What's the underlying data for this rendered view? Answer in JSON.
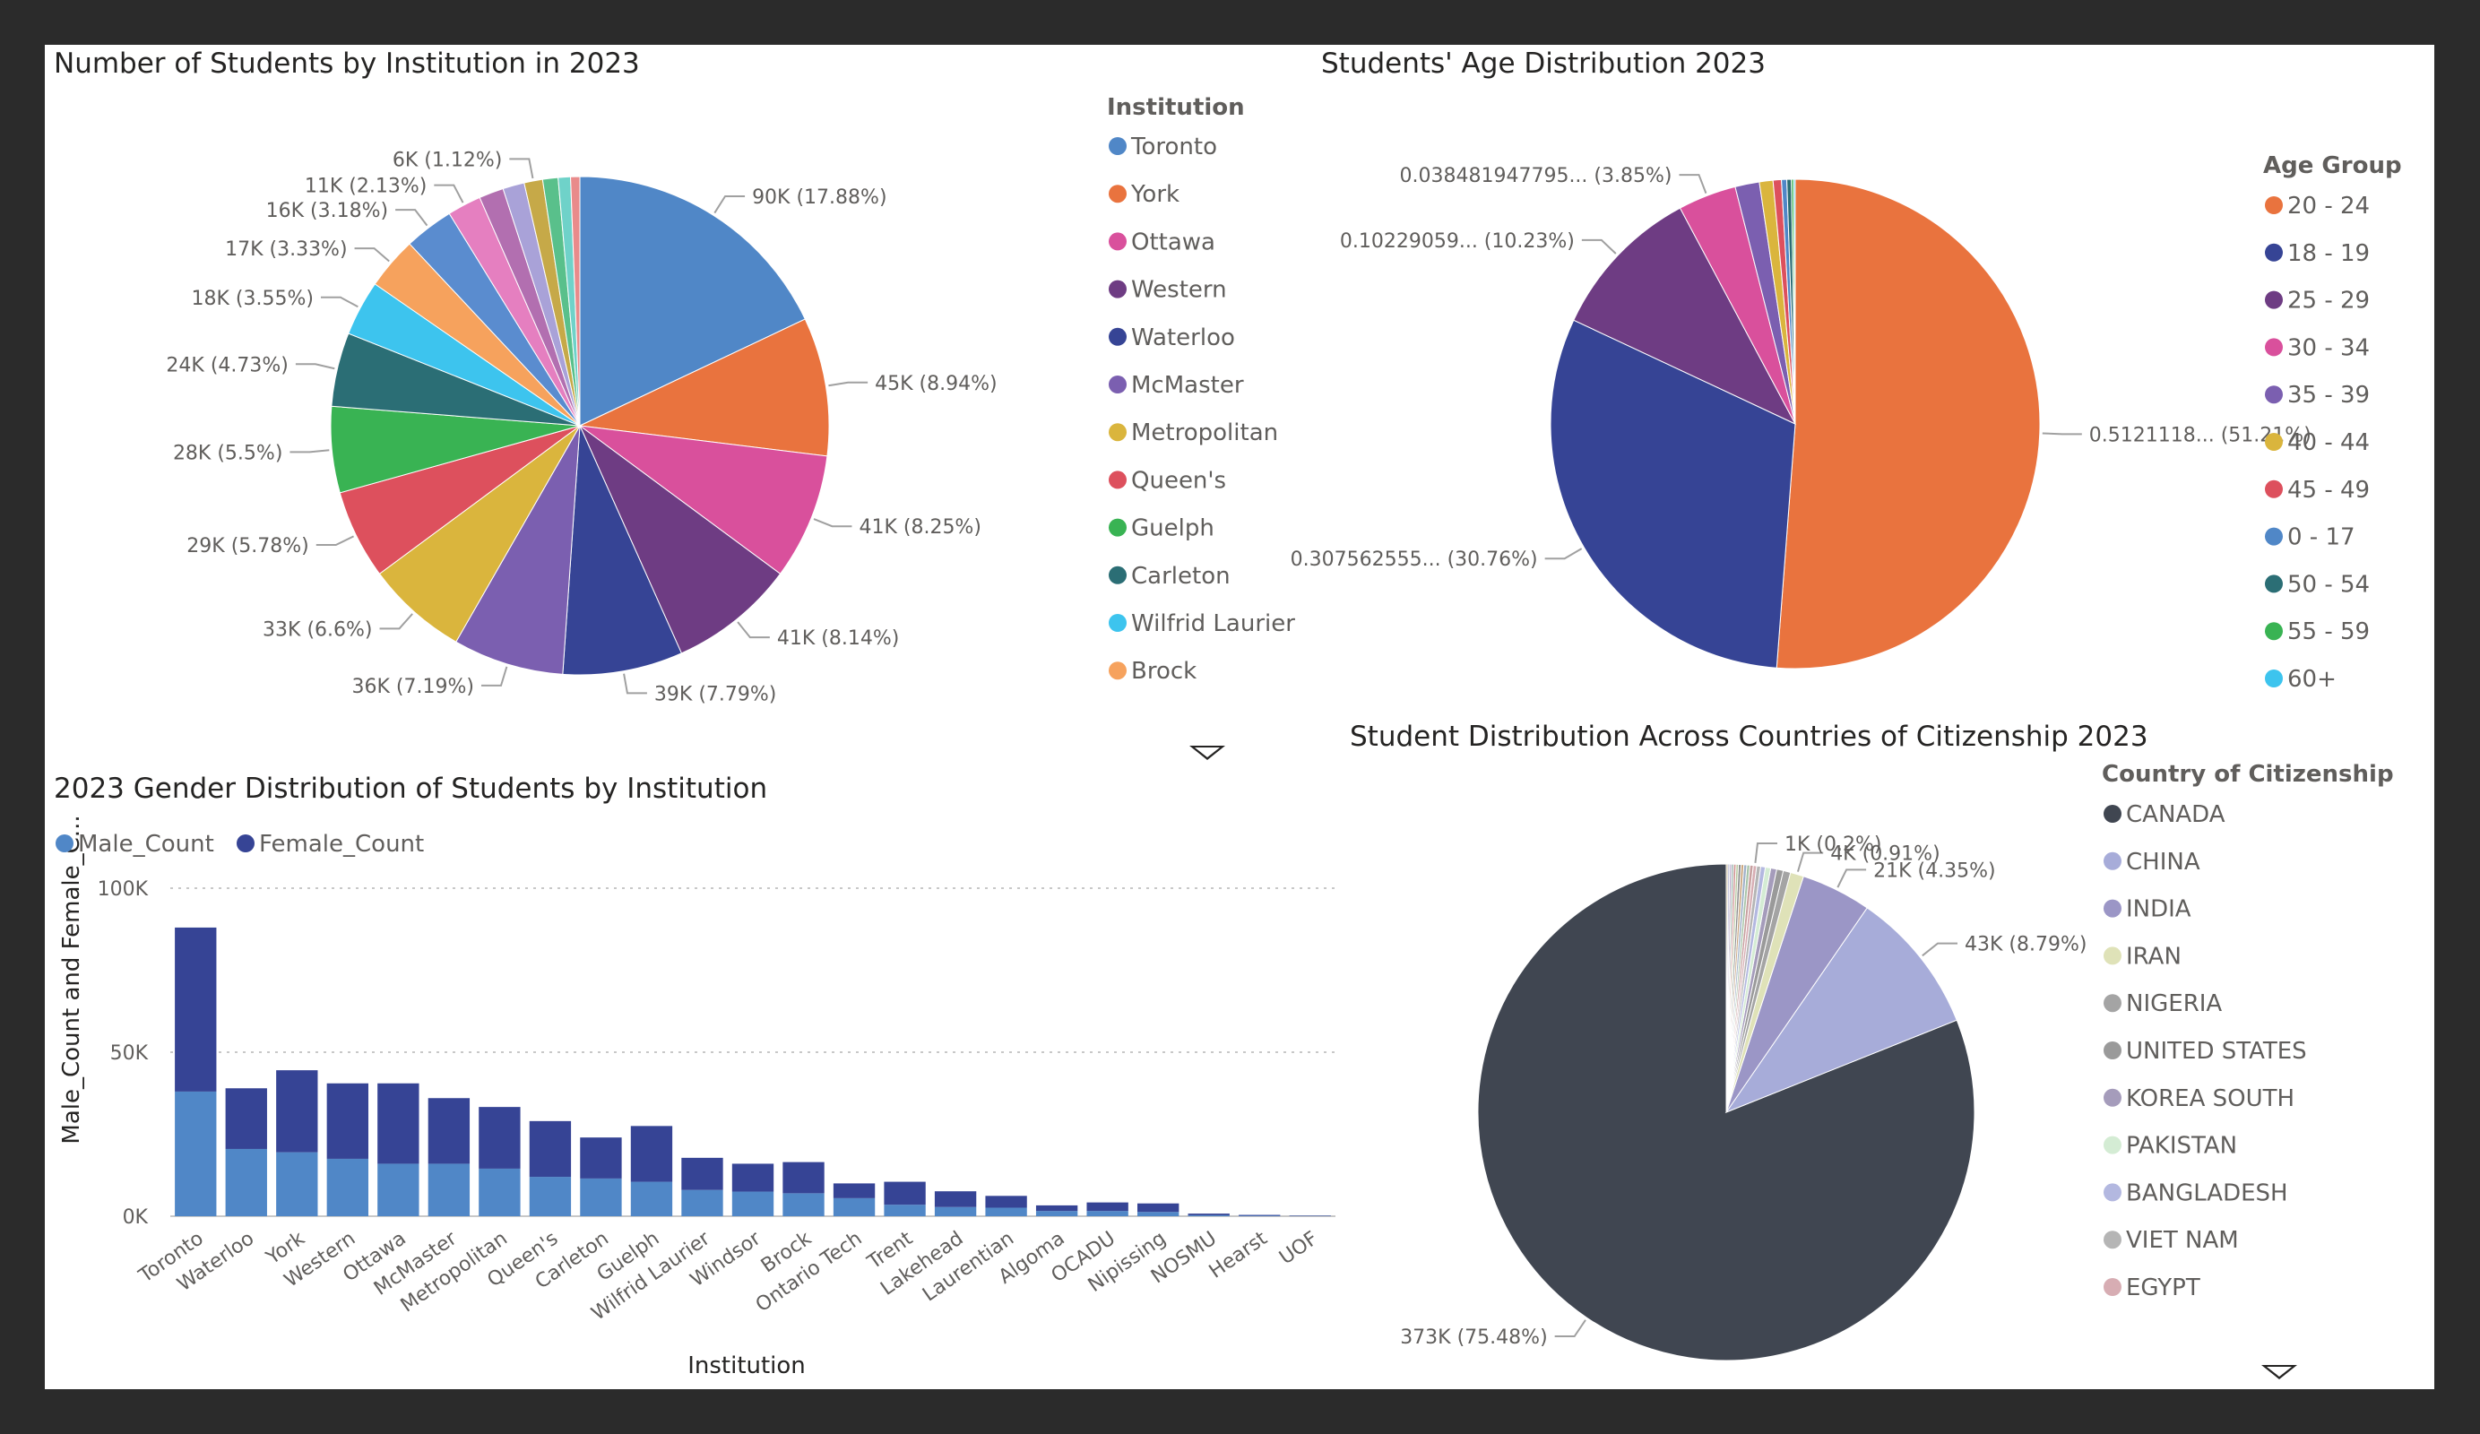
{
  "chart_data": [
    {
      "type": "pie",
      "title": "Number of Students by Institution in 2023",
      "legend_title": "Institution",
      "legend_position": "right",
      "slices": [
        {
          "name": "Toronto",
          "value": 90,
          "label": "90K (17.88%)",
          "color": "#5087c7"
        },
        {
          "name": "York",
          "value": 45,
          "label": "45K (8.94%)",
          "color": "#e9733e"
        },
        {
          "name": "Ottawa",
          "value": 41,
          "label": "41K (8.25%)",
          "color": "#d9509c"
        },
        {
          "name": "Western",
          "value": 41,
          "label": "41K (8.14%)",
          "color": "#6e3c83"
        },
        {
          "name": "Waterloo",
          "value": 39,
          "label": "39K (7.79%)",
          "color": "#364495"
        },
        {
          "name": "McMaster",
          "value": 36,
          "label": "36K (7.19%)",
          "color": "#7b5fb0"
        },
        {
          "name": "Metropolitan",
          "value": 33,
          "label": "33K (6.6%)",
          "color": "#dab53d"
        },
        {
          "name": "Queen's",
          "value": 29,
          "label": "29K (5.78%)",
          "color": "#dd505d"
        },
        {
          "name": "Guelph",
          "value": 28,
          "label": "28K (5.5%)",
          "color": "#39b353"
        },
        {
          "name": "Carleton",
          "value": 24,
          "label": "24K (4.73%)",
          "color": "#2b6e75"
        },
        {
          "name": "Wilfrid Laurier",
          "value": 18,
          "label": "18K (3.55%)",
          "color": "#3dc4ee"
        },
        {
          "name": "Brock",
          "value": 17,
          "label": "17K (3.33%)",
          "color": "#f6a25d"
        },
        {
          "name": "",
          "value": 16,
          "label": "16K (3.18%)",
          "color": "#5a8ccf"
        },
        {
          "name": "",
          "value": 11,
          "label": "11K (2.13%)",
          "color": "#e57fc0"
        },
        {
          "name": "",
          "value": 8,
          "label": "",
          "color": "#b26fb0"
        },
        {
          "name": "",
          "value": 7,
          "label": "",
          "color": "#a9a2d8"
        },
        {
          "name": "",
          "value": 6,
          "label": "6K (1.12%)",
          "color": "#c6a948"
        },
        {
          "name": "",
          "value": 5,
          "label": "",
          "color": "#59c08b"
        },
        {
          "name": "",
          "value": 4,
          "label": "",
          "color": "#6fd2c9"
        },
        {
          "name": "",
          "value": 3,
          "label": "",
          "color": "#e98b8b"
        }
      ]
    },
    {
      "type": "pie",
      "title": "Students' Age Distribution 2023",
      "legend_title": "Age Group",
      "legend_position": "right",
      "slices": [
        {
          "name": "20 - 24",
          "value": 51.21,
          "label": "0.5121118... (51.21%)",
          "color": "#e9733e"
        },
        {
          "name": "18 - 19",
          "value": 30.76,
          "label": "0.307562555... (30.76%)",
          "color": "#364495"
        },
        {
          "name": "25 - 29",
          "value": 10.23,
          "label": "0.10229059... (10.23%)",
          "color": "#6e3c83"
        },
        {
          "name": "30 - 34",
          "value": 3.85,
          "label": "0.038481947795... (3.85%)",
          "color": "#d9509c"
        },
        {
          "name": "35 - 39",
          "value": 1.6,
          "label": "",
          "color": "#7b5fb0"
        },
        {
          "name": "40 - 44",
          "value": 0.9,
          "label": "",
          "color": "#dab53d"
        },
        {
          "name": "45 - 49",
          "value": 0.55,
          "label": "",
          "color": "#dd505d"
        },
        {
          "name": "0 - 17",
          "value": 0.35,
          "label": "",
          "color": "#5087c7"
        },
        {
          "name": "50 - 54",
          "value": 0.3,
          "label": "",
          "color": "#2b6e75"
        },
        {
          "name": "55 - 59",
          "value": 0.15,
          "label": "",
          "color": "#39b353"
        },
        {
          "name": "60+",
          "value": 0.1,
          "label": "",
          "color": "#3dc4ee"
        }
      ]
    },
    {
      "type": "bar",
      "stacked": true,
      "title": "2023 Gender Distribution of Students by Institution",
      "xlabel": "Institution",
      "ylabel": "Male_Count and Female_C...",
      "ylim": [
        0,
        100000
      ],
      "yticks": [
        "0K",
        "50K",
        "100K"
      ],
      "grid": true,
      "legend_position": "top-left",
      "categories": [
        "Toronto",
        "Waterloo",
        "York",
        "Western",
        "Ottawa",
        "McMaster",
        "Metropolitan",
        "Queen's",
        "Carleton",
        "Guelph",
        "Wilfrid Laurier",
        "Windsor",
        "Brock",
        "Ontario Tech",
        "Trent",
        "Lakehead",
        "Laurentian",
        "Algoma",
        "OCADU",
        "Nipissing",
        "NOSMU",
        "Hearst",
        "UOF"
      ],
      "series": [
        {
          "name": "Male_Count",
          "color": "#5087c7",
          "values": [
            38000,
            20500,
            19500,
            17500,
            16000,
            16000,
            14500,
            12000,
            11500,
            10500,
            8000,
            7500,
            7000,
            5500,
            3500,
            2800,
            2600,
            1600,
            1600,
            1300,
            300,
            150,
            80
          ]
        },
        {
          "name": "Female_Count",
          "color": "#364495",
          "values": [
            50000,
            18500,
            25000,
            23000,
            24500,
            20000,
            18800,
            17000,
            12500,
            17000,
            9800,
            8500,
            9500,
            4500,
            7000,
            4800,
            3600,
            1700,
            2600,
            2600,
            500,
            250,
            120
          ]
        }
      ]
    },
    {
      "type": "pie",
      "title": "Student Distribution Across Countries of Citizenship 2023",
      "legend_title": "Country of Citizenship",
      "legend_position": "right",
      "slices": [
        {
          "name": "CANADA",
          "value": 373,
          "label": "373K (75.48%)",
          "color": "#404651"
        },
        {
          "name": "CHINA",
          "value": 43,
          "label": "43K (8.79%)",
          "color": "#a7acd9"
        },
        {
          "name": "INDIA",
          "value": 21,
          "label": "21K (4.35%)",
          "color": "#9b96c6"
        },
        {
          "name": "IRAN",
          "value": 4,
          "label": "4K (0.91%)",
          "color": "#dfe2b8"
        },
        {
          "name": "NIGERIA",
          "value": 2.2,
          "label": "",
          "color": "#a4a4a4"
        },
        {
          "name": "UNITED STATES",
          "value": 2,
          "label": "",
          "color": "#9a9a9a"
        },
        {
          "name": "KOREA SOUTH",
          "value": 1.8,
          "label": "",
          "color": "#a59cbb"
        },
        {
          "name": "PAKISTAN",
          "value": 1.6,
          "label": "",
          "color": "#d4ecd4"
        },
        {
          "name": "BANGLADESH",
          "value": 1.4,
          "label": "",
          "color": "#b3b8e0"
        },
        {
          "name": "VIET NAM",
          "value": 1.2,
          "label": "",
          "color": "#b5b5b5"
        },
        {
          "name": "EGYPT",
          "value": 1,
          "label": "1K (0.2%)",
          "color": "#d7adb3"
        },
        {
          "name": "",
          "value": 1,
          "label": "",
          "color": "#c8a0a0"
        },
        {
          "name": "",
          "value": 0.9,
          "label": "",
          "color": "#a8c4a8"
        },
        {
          "name": "",
          "value": 0.9,
          "label": "",
          "color": "#9fb0c8"
        },
        {
          "name": "",
          "value": 0.8,
          "label": "",
          "color": "#c9a47c"
        },
        {
          "name": "",
          "value": 0.8,
          "label": "",
          "color": "#8d8d8d"
        },
        {
          "name": "",
          "value": 0.7,
          "label": "",
          "color": "#b6c9a0"
        },
        {
          "name": "",
          "value": 0.7,
          "label": "",
          "color": "#d08f8f"
        },
        {
          "name": "",
          "value": 0.6,
          "label": "",
          "color": "#8ea9a1"
        },
        {
          "name": "",
          "value": 0.6,
          "label": "",
          "color": "#b8a6c9"
        },
        {
          "name": "",
          "value": 0.5,
          "label": "",
          "color": "#a3a3c8"
        },
        {
          "name": "",
          "value": 0.5,
          "label": "",
          "color": "#c0b28c"
        }
      ]
    }
  ]
}
